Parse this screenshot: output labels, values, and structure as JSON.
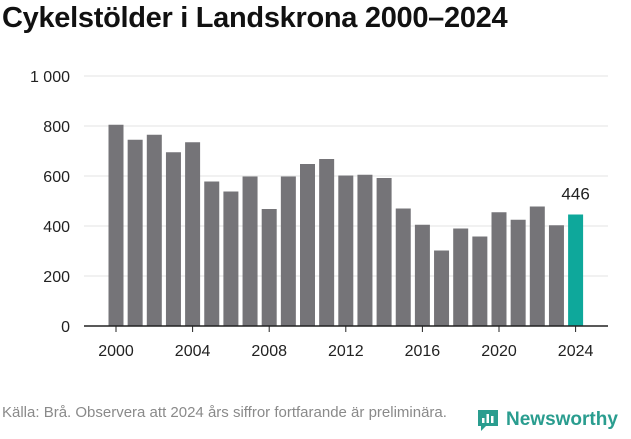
{
  "title": "Cykelstölder i Landskrona 2000–2024",
  "source": "Källa: Brå. Observera att 2024 års siffror fortfarande är preliminära.",
  "brand": {
    "name": "Newsworthy",
    "icon": "newsworthy-logo-icon"
  },
  "colors": {
    "bar": "#757478",
    "highlight": "#0ea89b",
    "grid": "#e3e3e3",
    "axis": "#222222",
    "text": "#222222"
  },
  "chart_data": {
    "type": "bar",
    "title": "Cykelstölder i Landskrona 2000–2024",
    "xlabel": "",
    "ylabel": "",
    "categories": [
      2000,
      2001,
      2002,
      2003,
      2004,
      2005,
      2006,
      2007,
      2008,
      2009,
      2010,
      2011,
      2012,
      2013,
      2014,
      2015,
      2016,
      2017,
      2018,
      2019,
      2020,
      2021,
      2022,
      2023,
      2024
    ],
    "values": [
      805,
      745,
      765,
      695,
      735,
      578,
      538,
      598,
      468,
      598,
      648,
      668,
      602,
      605,
      592,
      470,
      405,
      302,
      390,
      358,
      455,
      425,
      478,
      403,
      446
    ],
    "highlight_category": 2024,
    "highlight_label": "446",
    "ylim": [
      0,
      1000
    ],
    "yticks": [
      0,
      200,
      400,
      600,
      800,
      1000
    ],
    "ytick_labels": [
      "0",
      "200",
      "400",
      "600",
      "800",
      "1 000"
    ],
    "xticks": [
      2000,
      2004,
      2008,
      2012,
      2016,
      2020,
      2024
    ],
    "xtick_labels": [
      "2000",
      "2004",
      "2008",
      "2012",
      "2016",
      "2020",
      "2024"
    ],
    "grid": true,
    "legend": "none"
  }
}
